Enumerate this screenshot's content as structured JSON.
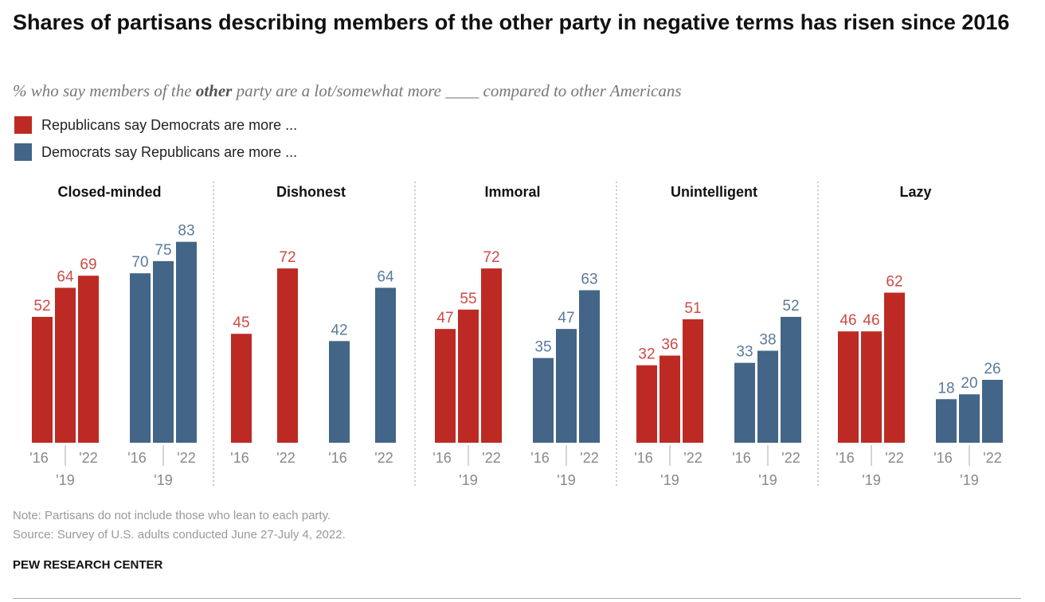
{
  "title": "Shares of partisans describing members of the other party in negative terms has risen since 2016",
  "subtitle": {
    "pre": "% who say members of the ",
    "bold": "other",
    "post": " party are a lot/somewhat more ____ compared to other Americans"
  },
  "note": "Note: Partisans do not include those who lean to each party.",
  "source": "Source: Survey of U.S. adults conducted June 27-July 4, 2022.",
  "brand": "PEW RESEARCH CENTER",
  "chart_data": {
    "type": "bar",
    "legend": [
      {
        "name": "Republicans say Democrats are more ...",
        "color": "#bd2a24"
      },
      {
        "name": "Democrats say Republicans are more ...",
        "color": "#436587"
      }
    ],
    "ylim": [
      0,
      100
    ],
    "panels": [
      {
        "title": "Closed-minded",
        "years": [
          "'16",
          "'19",
          "'22"
        ],
        "series": [
          {
            "name": "Rep",
            "values": [
              52,
              64,
              69
            ]
          },
          {
            "name": "Dem",
            "values": [
              70,
              75,
              83
            ]
          }
        ]
      },
      {
        "title": "Dishonest",
        "years": [
          "'16",
          "'22"
        ],
        "series": [
          {
            "name": "Rep",
            "values": [
              45,
              72
            ]
          },
          {
            "name": "Dem",
            "values": [
              42,
              64
            ]
          }
        ]
      },
      {
        "title": "Immoral",
        "years": [
          "'16",
          "'19",
          "'22"
        ],
        "series": [
          {
            "name": "Rep",
            "values": [
              47,
              55,
              72
            ]
          },
          {
            "name": "Dem",
            "values": [
              35,
              47,
              63
            ]
          }
        ]
      },
      {
        "title": "Unintelligent",
        "years": [
          "'16",
          "'19",
          "'22"
        ],
        "series": [
          {
            "name": "Rep",
            "values": [
              32,
              36,
              51
            ]
          },
          {
            "name": "Dem",
            "values": [
              33,
              38,
              52
            ]
          }
        ]
      },
      {
        "title": "Lazy",
        "years": [
          "'16",
          "'19",
          "'22"
        ],
        "series": [
          {
            "name": "Rep",
            "values": [
              46,
              46,
              62
            ]
          },
          {
            "name": "Dem",
            "values": [
              18,
              20,
              26
            ]
          }
        ]
      }
    ]
  }
}
